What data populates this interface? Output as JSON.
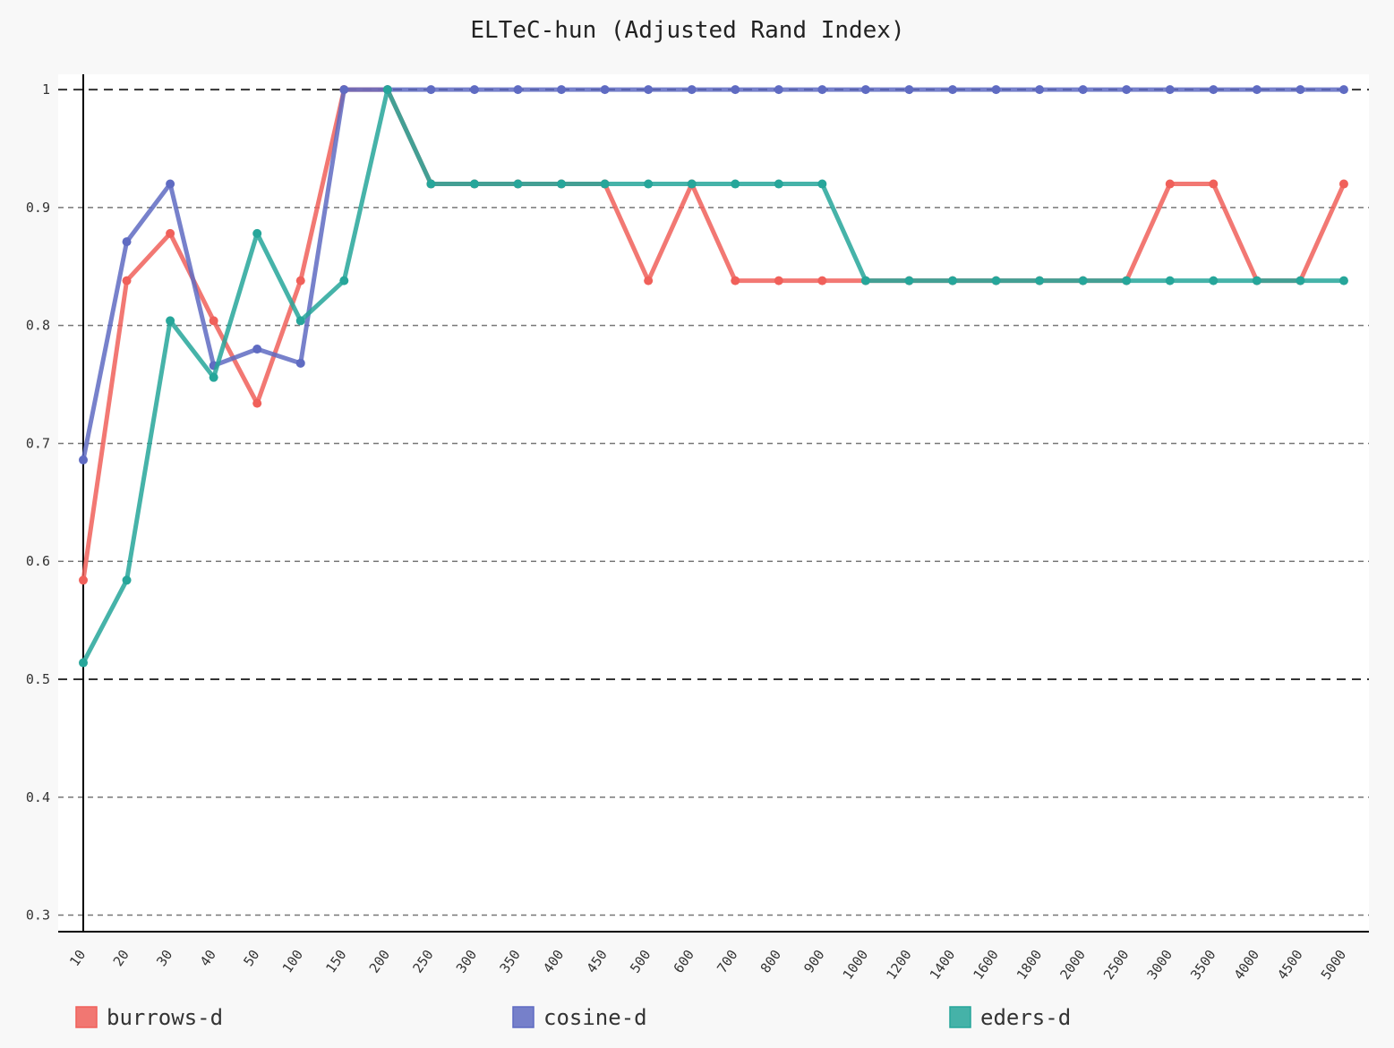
{
  "chart_data": {
    "type": "line",
    "title": "ELTeC-hun (Adjusted Rand Index)",
    "xlabel": "",
    "ylabel": "",
    "categories": [
      "10",
      "20",
      "30",
      "40",
      "50",
      "100",
      "150",
      "200",
      "250",
      "300",
      "350",
      "400",
      "450",
      "500",
      "600",
      "700",
      "800",
      "900",
      "1000",
      "1200",
      "1400",
      "1600",
      "1800",
      "2000",
      "2500",
      "3000",
      "3500",
      "4000",
      "4500",
      "5000"
    ],
    "y_ticks": [
      "0.3",
      "0.4",
      "0.5",
      "0.6",
      "0.7",
      "0.8",
      "0.9",
      "1"
    ],
    "ylim": [
      0.286,
      1.013
    ],
    "grid": true,
    "legend_position": "bottom",
    "series": [
      {
        "name": "burrows-d",
        "color": "#f0605a",
        "values": [
          0.584,
          0.838,
          0.878,
          0.804,
          0.734,
          0.838,
          1.0,
          1.0,
          0.92,
          0.92,
          0.92,
          0.92,
          0.92,
          0.838,
          0.92,
          0.838,
          0.838,
          0.838,
          0.838,
          0.838,
          0.838,
          0.838,
          0.838,
          0.838,
          0.838,
          0.92,
          0.92,
          0.838,
          0.838,
          0.92
        ]
      },
      {
        "name": "cosine-d",
        "color": "#5f6bc2",
        "values": [
          0.686,
          0.871,
          0.92,
          0.766,
          0.78,
          0.768,
          1.0,
          1.0,
          1.0,
          1.0,
          1.0,
          1.0,
          1.0,
          1.0,
          1.0,
          1.0,
          1.0,
          1.0,
          1.0,
          1.0,
          1.0,
          1.0,
          1.0,
          1.0,
          1.0,
          1.0,
          1.0,
          1.0,
          1.0,
          1.0
        ]
      },
      {
        "name": "eders-d",
        "color": "#26a69a",
        "values": [
          0.514,
          0.584,
          0.804,
          0.756,
          0.878,
          0.804,
          0.838,
          1.0,
          0.92,
          0.92,
          0.92,
          0.92,
          0.92,
          0.92,
          0.92,
          0.92,
          0.92,
          0.92,
          0.838,
          0.838,
          0.838,
          0.838,
          0.838,
          0.838,
          0.838,
          0.838,
          0.838,
          0.838,
          0.838,
          0.838
        ]
      }
    ]
  }
}
